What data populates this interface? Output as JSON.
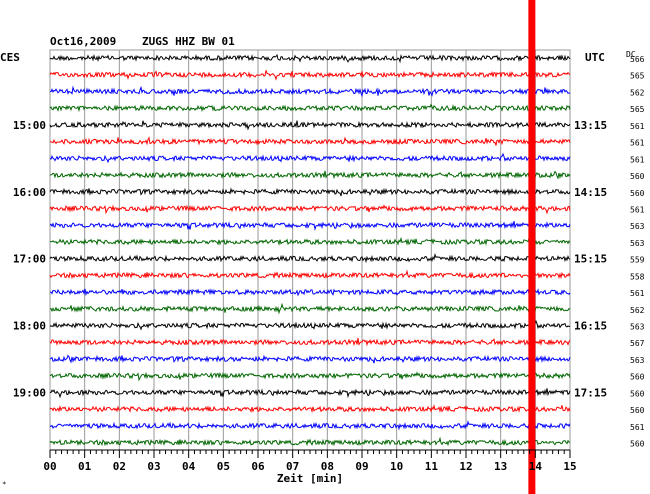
{
  "header": {
    "date": "Oct16,2009",
    "station": "ZUGS HHZ BW 01",
    "left_timezone": "CES",
    "right_timezone": "UTC",
    "dc_label": "DC",
    "corner_mark": "∗"
  },
  "chart_data": {
    "type": "line",
    "title": "Oct16,2009   ZUGS HHZ BW 01",
    "xlabel": "Zeit [min]",
    "xlim": [
      0,
      15
    ],
    "x_ticks": [
      "00",
      "01",
      "02",
      "03",
      "04",
      "05",
      "06",
      "07",
      "08",
      "09",
      "10",
      "11",
      "12",
      "13",
      "14",
      "15"
    ],
    "grid": true,
    "rows_per_hour": 4,
    "trace_count": 24,
    "trace_colors": [
      "#000000",
      "#ff0000",
      "#0000ff",
      "#006600"
    ],
    "left_hour_labels": [
      "15:00",
      "16:00",
      "17:00",
      "18:00",
      "19:00"
    ],
    "right_hour_labels": [
      "13:15",
      "14:15",
      "15:15",
      "16:15",
      "17:15"
    ],
    "dc_offsets": [
      "566",
      "565",
      "562",
      "565",
      "561",
      "561",
      "561",
      "560",
      "560",
      "561",
      "563",
      "563",
      "559",
      "558",
      "561",
      "562",
      "563",
      "567",
      "563",
      "560",
      "560",
      "560",
      "561",
      "560"
    ],
    "event_marker": {
      "minute": 13.9,
      "color": "#ff0000"
    }
  }
}
